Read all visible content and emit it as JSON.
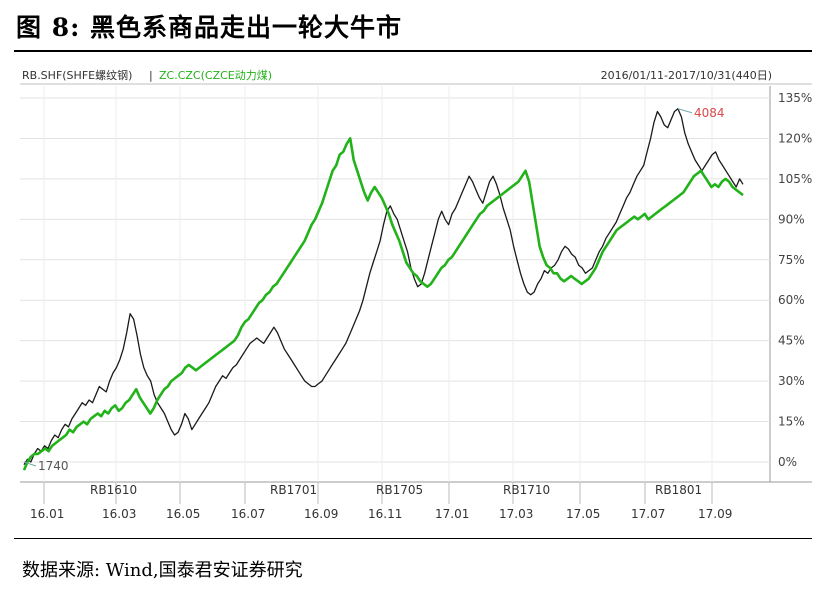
{
  "figure": {
    "title": "图 8: 黑色系商品走出一轮大牛市",
    "source": "数据来源: Wind,国泰君安证券研究"
  },
  "legend": {
    "series1_label": "RB.SHF(SHFE螺纹钢)",
    "separator": "|",
    "series2_label": "ZC.CZC(CZCE动力煤)",
    "date_range": "2016/01/11-2017/10/31(440日)"
  },
  "chart_data": {
    "type": "line",
    "y_unit": "percent change since start",
    "ylim": [
      -5,
      135
    ],
    "y_ticks": [
      "135%",
      "120%",
      "105%",
      "90%",
      "75%",
      "60%",
      "45%",
      "30%",
      "15%",
      "0%"
    ],
    "y_tick_values": [
      135,
      120,
      105,
      90,
      75,
      60,
      45,
      30,
      15,
      0
    ],
    "x_ticks": [
      "16.01",
      "16.03",
      "16.05",
      "16.07",
      "16.09",
      "16.11",
      "17.01",
      "17.03",
      "17.05",
      "17.07",
      "17.09"
    ],
    "contract_labels": [
      "RB1610",
      "RB1701",
      "RB1705",
      "RB1710",
      "RB1801"
    ],
    "annotations": {
      "start_value": "1740",
      "peak_value": "4084"
    },
    "colors": {
      "rb": "#1a1a1a",
      "zc": "#22b21a",
      "accent": "#d94a4a"
    },
    "series": [
      {
        "name": "RB.SHF(SHFE螺纹钢)",
        "values": [
          -1,
          1,
          0,
          3,
          5,
          4,
          6,
          5,
          8,
          10,
          9,
          12,
          14,
          13,
          16,
          18,
          20,
          22,
          21,
          23,
          22,
          25,
          28,
          27,
          26,
          30,
          33,
          35,
          38,
          42,
          48,
          55,
          53,
          47,
          40,
          35,
          32,
          30,
          25,
          22,
          20,
          18,
          15,
          12,
          10,
          11,
          14,
          18,
          16,
          12,
          14,
          16,
          18,
          20,
          22,
          25,
          28,
          30,
          32,
          31,
          33,
          35,
          36,
          38,
          40,
          42,
          44,
          45,
          46,
          45,
          44,
          46,
          48,
          50,
          48,
          45,
          42,
          40,
          38,
          36,
          34,
          32,
          30,
          29,
          28,
          28,
          29,
          30,
          32,
          34,
          36,
          38,
          40,
          42,
          44,
          47,
          50,
          53,
          56,
          60,
          65,
          70,
          74,
          78,
          82,
          88,
          93,
          95,
          92,
          90,
          86,
          82,
          78,
          72,
          68,
          65,
          66,
          70,
          75,
          80,
          85,
          90,
          93,
          90,
          88,
          92,
          94,
          97,
          100,
          103,
          106,
          104,
          101,
          98,
          96,
          100,
          104,
          106,
          103,
          99,
          94,
          90,
          86,
          80,
          75,
          70,
          66,
          63,
          62,
          63,
          66,
          68,
          71,
          70,
          72,
          73,
          75,
          78,
          80,
          79,
          77,
          76,
          73,
          72,
          70,
          71,
          72,
          75,
          78,
          80,
          83,
          85,
          87,
          89,
          92,
          95,
          98,
          100,
          103,
          106,
          108,
          110,
          115,
          120,
          126,
          130,
          128,
          125,
          124,
          127,
          130,
          131,
          128,
          122,
          118,
          115,
          112,
          110,
          108,
          110,
          112,
          114,
          115,
          112,
          110,
          108,
          106,
          104,
          102,
          105,
          103
        ]
      },
      {
        "name": "ZC.CZC(CZCE动力煤)",
        "values": [
          -3,
          0,
          2,
          3,
          3,
          4,
          5,
          4,
          6,
          7,
          8,
          9,
          10,
          12,
          11,
          13,
          14,
          15,
          14,
          16,
          17,
          18,
          17,
          19,
          18,
          20,
          21,
          19,
          20,
          22,
          23,
          25,
          27,
          24,
          22,
          20,
          18,
          20,
          23,
          25,
          27,
          28,
          30,
          31,
          32,
          33,
          35,
          36,
          35,
          34,
          35,
          36,
          37,
          38,
          39,
          40,
          41,
          42,
          43,
          44,
          45,
          47,
          50,
          52,
          53,
          55,
          57,
          59,
          60,
          62,
          63,
          65,
          66,
          68,
          70,
          72,
          74,
          76,
          78,
          80,
          82,
          85,
          88,
          90,
          93,
          96,
          100,
          104,
          108,
          110,
          114,
          115,
          118,
          120,
          112,
          108,
          104,
          100,
          97,
          100,
          102,
          100,
          98,
          95,
          92,
          88,
          85,
          82,
          78,
          74,
          72,
          70,
          69,
          67,
          66,
          65,
          66,
          68,
          70,
          72,
          73,
          75,
          76,
          78,
          80,
          82,
          84,
          86,
          88,
          90,
          92,
          93,
          95,
          96,
          97,
          98,
          99,
          100,
          101,
          102,
          103,
          104,
          106,
          108,
          104,
          96,
          88,
          80,
          76,
          73,
          72,
          70,
          70,
          68,
          67,
          68,
          69,
          68,
          67,
          66,
          67,
          68,
          70,
          72,
          75,
          78,
          80,
          82,
          84,
          86,
          87,
          88,
          89,
          90,
          91,
          90,
          91,
          92,
          90,
          91,
          92,
          93,
          94,
          95,
          96,
          97,
          98,
          99,
          100,
          102,
          104,
          106,
          107,
          108,
          106,
          104,
          102,
          103,
          102,
          104,
          105,
          104,
          102,
          101,
          100,
          99
        ]
      }
    ]
  }
}
